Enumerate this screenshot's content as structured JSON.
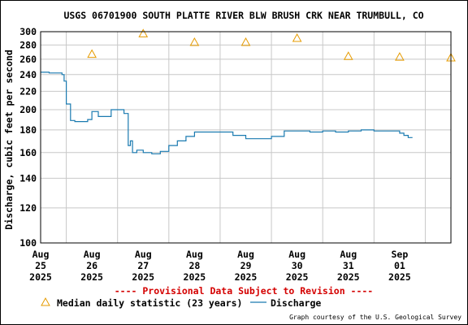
{
  "colors": {
    "background": "#ffffff",
    "grid": "#c8c8c8",
    "axis": "#000000",
    "discharge": "#1a7ab0",
    "median": "#e69b00",
    "provisional": "#d40000"
  },
  "footer": {
    "provisional_notice": "---- Provisional Data Subject to Revision ----",
    "credit": "Graph courtesy of the U.S. Geological Survey"
  },
  "chart_data": {
    "type": "line",
    "title": "USGS 06701900 SOUTH PLATTE RIVER BLW BRUSH CRK NEAR TRUMBULL, CO",
    "xlabel": "",
    "ylabel": "Discharge, cubic feet per second",
    "y_scale": "log",
    "ylim": [
      100,
      300
    ],
    "y_ticks": [
      100,
      120,
      140,
      160,
      180,
      200,
      220,
      240,
      260,
      280,
      300
    ],
    "xlim": [
      "2025-08-24T12:00",
      "2025-09-01T12:00"
    ],
    "x_ticks": [
      {
        "month": "Aug",
        "day": "25",
        "year": "2025"
      },
      {
        "month": "Aug",
        "day": "26",
        "year": "2025"
      },
      {
        "month": "Aug",
        "day": "27",
        "year": "2025"
      },
      {
        "month": "Aug",
        "day": "28",
        "year": "2025"
      },
      {
        "month": "Aug",
        "day": "29",
        "year": "2025"
      },
      {
        "month": "Aug",
        "day": "30",
        "year": "2025"
      },
      {
        "month": "Aug",
        "day": "31",
        "year": "2025"
      },
      {
        "month": "Sep",
        "day": "01",
        "year": "2025"
      }
    ],
    "grid": true,
    "legend_position": "bottom",
    "series": [
      {
        "name": "Median daily statistic (23 years)",
        "marker": "triangle",
        "points": [
          {
            "x": "2025-08-25",
            "y": 267
          },
          {
            "x": "2025-08-26",
            "y": 297
          },
          {
            "x": "2025-08-27",
            "y": 284
          },
          {
            "x": "2025-08-28",
            "y": 284
          },
          {
            "x": "2025-08-29",
            "y": 290
          },
          {
            "x": "2025-08-30",
            "y": 264
          },
          {
            "x": "2025-08-31",
            "y": 263
          },
          {
            "x": "2025-09-01",
            "y": 262
          }
        ]
      },
      {
        "name": "Discharge",
        "marker": "line",
        "points": [
          {
            "x": "2025-08-24T12:00",
            "y": 243
          },
          {
            "x": "2025-08-24T16:00",
            "y": 242
          },
          {
            "x": "2025-08-24T20:00",
            "y": 242
          },
          {
            "x": "2025-08-24T22:00",
            "y": 240
          },
          {
            "x": "2025-08-24T23:00",
            "y": 232
          },
          {
            "x": "2025-08-25T00:00",
            "y": 206
          },
          {
            "x": "2025-08-25T02:00",
            "y": 189
          },
          {
            "x": "2025-08-25T04:00",
            "y": 188
          },
          {
            "x": "2025-08-25T08:00",
            "y": 188
          },
          {
            "x": "2025-08-25T10:00",
            "y": 190
          },
          {
            "x": "2025-08-25T12:00",
            "y": 198
          },
          {
            "x": "2025-08-25T14:00",
            "y": 198
          },
          {
            "x": "2025-08-25T15:00",
            "y": 193
          },
          {
            "x": "2025-08-25T20:00",
            "y": 193
          },
          {
            "x": "2025-08-25T21:00",
            "y": 200
          },
          {
            "x": "2025-08-26T02:00",
            "y": 200
          },
          {
            "x": "2025-08-26T03:00",
            "y": 196
          },
          {
            "x": "2025-08-26T05:00",
            "y": 166
          },
          {
            "x": "2025-08-26T06:00",
            "y": 170
          },
          {
            "x": "2025-08-26T07:00",
            "y": 160
          },
          {
            "x": "2025-08-26T09:00",
            "y": 162
          },
          {
            "x": "2025-08-26T12:00",
            "y": 160
          },
          {
            "x": "2025-08-26T16:00",
            "y": 159
          },
          {
            "x": "2025-08-26T20:00",
            "y": 161
          },
          {
            "x": "2025-08-27T00:00",
            "y": 166
          },
          {
            "x": "2025-08-27T04:00",
            "y": 170
          },
          {
            "x": "2025-08-27T08:00",
            "y": 174
          },
          {
            "x": "2025-08-27T12:00",
            "y": 178
          },
          {
            "x": "2025-08-27T18:00",
            "y": 178
          },
          {
            "x": "2025-08-28T00:00",
            "y": 178
          },
          {
            "x": "2025-08-28T06:00",
            "y": 175
          },
          {
            "x": "2025-08-28T12:00",
            "y": 172
          },
          {
            "x": "2025-08-28T18:00",
            "y": 172
          },
          {
            "x": "2025-08-29T00:00",
            "y": 174
          },
          {
            "x": "2025-08-29T06:00",
            "y": 179
          },
          {
            "x": "2025-08-29T12:00",
            "y": 179
          },
          {
            "x": "2025-08-29T18:00",
            "y": 178
          },
          {
            "x": "2025-08-30T00:00",
            "y": 179
          },
          {
            "x": "2025-08-30T06:00",
            "y": 178
          },
          {
            "x": "2025-08-30T12:00",
            "y": 179
          },
          {
            "x": "2025-08-30T18:00",
            "y": 180
          },
          {
            "x": "2025-08-31T00:00",
            "y": 179
          },
          {
            "x": "2025-08-31T06:00",
            "y": 179
          },
          {
            "x": "2025-08-31T12:00",
            "y": 177
          },
          {
            "x": "2025-08-31T14:00",
            "y": 175
          },
          {
            "x": "2025-08-31T16:00",
            "y": 173
          },
          {
            "x": "2025-08-31T18:00",
            "y": 173
          }
        ]
      }
    ]
  }
}
